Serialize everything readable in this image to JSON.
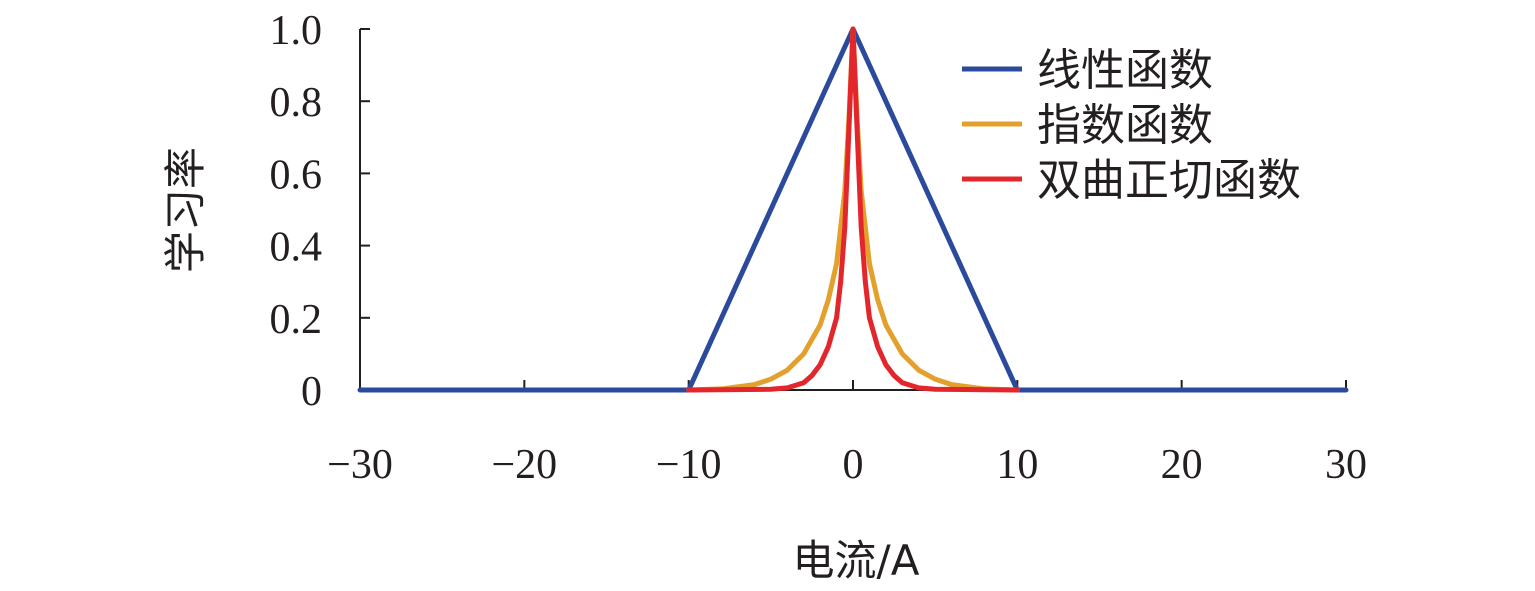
{
  "chart_data": {
    "type": "line",
    "xlabel": "电流/A",
    "ylabel": "学习率",
    "xlim": [
      -30,
      30
    ],
    "ylim": [
      0,
      1.0
    ],
    "x_ticks": [
      -30,
      -20,
      -10,
      0,
      10,
      20,
      30
    ],
    "x_tick_labels": [
      "−30",
      "−20",
      "−10",
      "0",
      "10",
      "20",
      "30"
    ],
    "y_ticks": [
      0,
      0.2,
      0.4,
      0.6,
      0.8,
      1.0
    ],
    "y_tick_labels": [
      "0",
      "0.2",
      "0.4",
      "0.6",
      "0.8",
      "1.0"
    ],
    "grid": false,
    "legend_position": "top-right",
    "series": [
      {
        "name": "线性函数",
        "color": "#2b4a9b",
        "x": [
          -30,
          -10,
          0,
          10,
          30
        ],
        "y": [
          0,
          0,
          1.0,
          0,
          0
        ]
      },
      {
        "name": "指数函数",
        "color": "#e3a02c",
        "x": [
          -10,
          -8,
          -6,
          -5,
          -4,
          -3,
          -2,
          -1.5,
          -1,
          -0.5,
          -0.25,
          0,
          0.25,
          0.5,
          1,
          1.5,
          2,
          3,
          4,
          5,
          6,
          8,
          10
        ],
        "y": [
          0,
          0.003,
          0.015,
          0.03,
          0.055,
          0.1,
          0.18,
          0.25,
          0.35,
          0.55,
          0.75,
          1.0,
          0.75,
          0.55,
          0.35,
          0.25,
          0.18,
          0.1,
          0.055,
          0.03,
          0.015,
          0.003,
          0
        ]
      },
      {
        "name": "双曲正切函数",
        "color": "#e3262b",
        "x": [
          -10,
          -5,
          -4,
          -3,
          -2.5,
          -2,
          -1.5,
          -1,
          -0.75,
          -0.5,
          -0.25,
          0,
          0.25,
          0.5,
          0.75,
          1,
          1.5,
          2,
          2.5,
          3,
          4,
          5,
          10
        ],
        "y": [
          0,
          0.002,
          0.006,
          0.02,
          0.04,
          0.07,
          0.12,
          0.2,
          0.3,
          0.45,
          0.72,
          1.0,
          0.72,
          0.45,
          0.3,
          0.2,
          0.12,
          0.07,
          0.04,
          0.02,
          0.006,
          0.002,
          0
        ]
      }
    ]
  }
}
